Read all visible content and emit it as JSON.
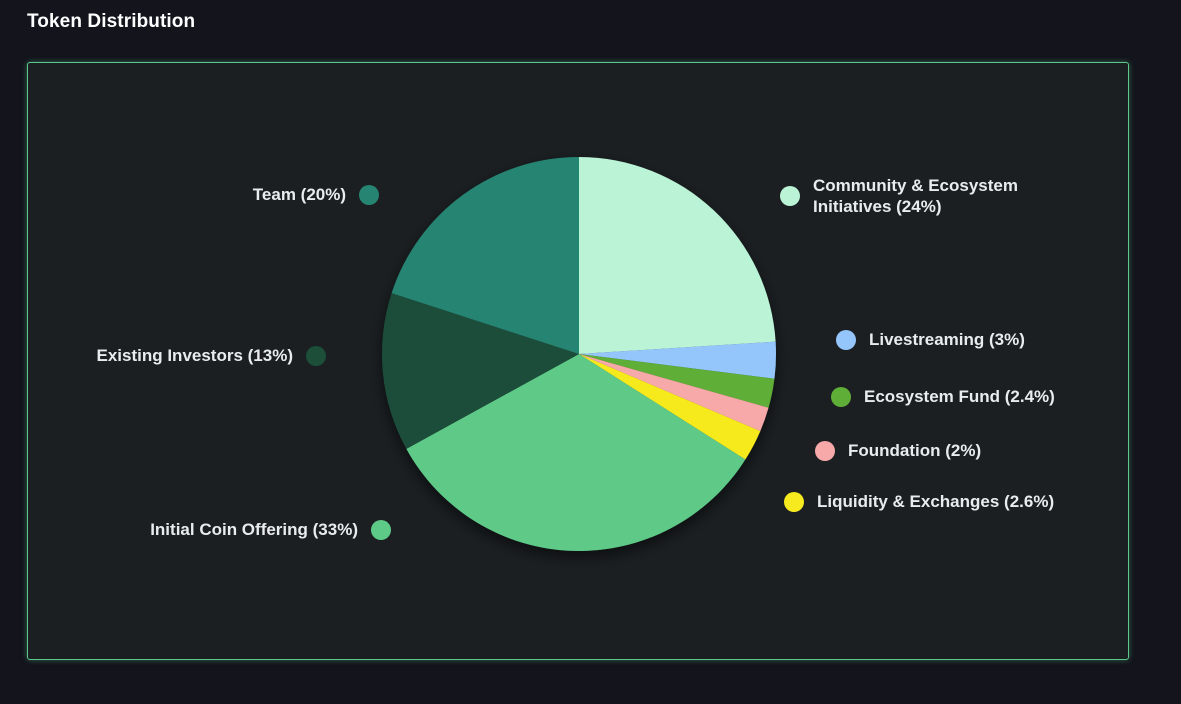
{
  "page": {
    "title": "Token Distribution"
  },
  "colors": {
    "background": "#13141c",
    "panel": "#1b1f22",
    "panel_border": "#5cc98a",
    "label_text": "#e9ecef"
  },
  "chart_data": {
    "type": "pie",
    "title": "",
    "slices": [
      {
        "label": "Community & Ecosystem Initiatives (24%)",
        "value": 24,
        "color": "#bbf3d6"
      },
      {
        "label": "Livestreaming (3%)",
        "value": 3,
        "color": "#94c6fb"
      },
      {
        "label": "Ecosystem Fund (2.4%)",
        "value": 2.4,
        "color": "#5fae37"
      },
      {
        "label": "Foundation (2%)",
        "value": 2,
        "color": "#f7a8a8"
      },
      {
        "label": "Liquidity & Exchanges (2.6%)",
        "value": 2.6,
        "color": "#f7ea1f"
      },
      {
        "label": "Initial Coin Offering (33%)",
        "value": 33,
        "color": "#5eca88"
      },
      {
        "label": "Existing Investors (13%)",
        "value": 13,
        "color": "#1d4e3a"
      },
      {
        "label": "Team (20%)",
        "value": 20,
        "color": "#268472"
      }
    ],
    "start_angle_deg": 0,
    "direction": "clockwise"
  }
}
